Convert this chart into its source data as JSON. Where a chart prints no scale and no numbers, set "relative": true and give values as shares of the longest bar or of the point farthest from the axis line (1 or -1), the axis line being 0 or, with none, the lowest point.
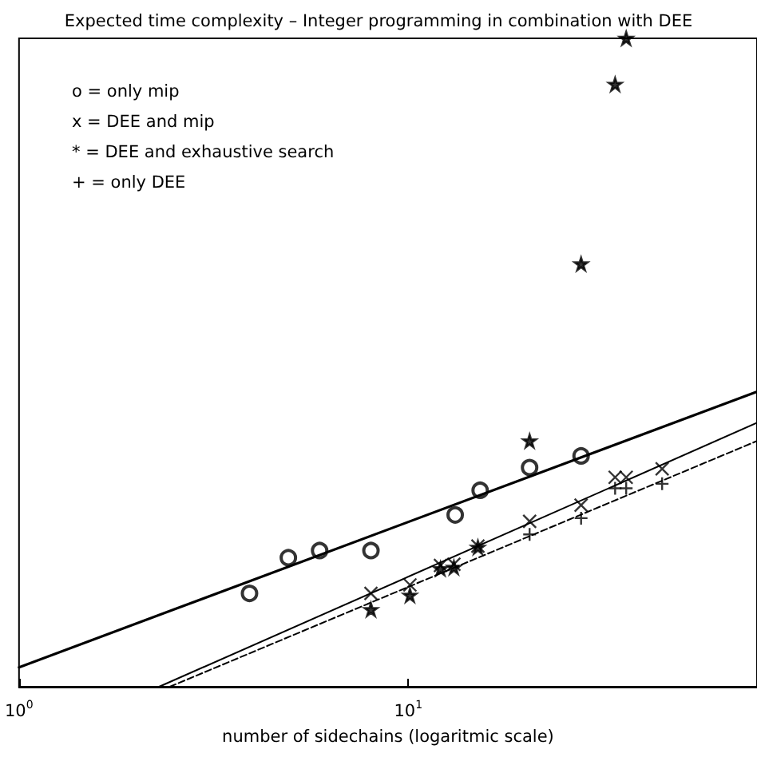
{
  "chart_data": {
    "type": "scatter",
    "title": "Expected time complexity – Integer programming in combination with DEE",
    "xlabel": "number of sidechains (logaritmic scale)",
    "relative": true,
    "log": "x",
    "xlim": [
      1,
      78.7
    ],
    "xticks": [
      {
        "value": 1,
        "label": "10$^{0}$"
      },
      {
        "value": 10,
        "label": "10$^{1}$"
      }
    ],
    "grid": false,
    "annotations": [
      "o = only mip",
      "x = DEE and mip",
      "* = DEE and exhaustive search",
      "+ = only DEE"
    ],
    "series": [
      {
        "color": "#000000",
        "marker": "circle",
        "x": [
          3.91,
          4.92,
          5.92,
          8.02,
          13.2,
          15.3,
          20.5,
          27.8
        ],
        "values": [
          0.144,
          0.199,
          0.21,
          0.21,
          0.265,
          0.303,
          0.338,
          0.356
        ]
      },
      {
        "color": "#000000",
        "marker": "cross",
        "x": [
          8.02,
          10.1,
          12.1,
          13.1,
          15.1,
          20.5,
          27.8,
          34.0,
          36.3,
          44.9
        ],
        "values": [
          0.144,
          0.157,
          0.187,
          0.189,
          0.217,
          0.255,
          0.28,
          0.323,
          0.323,
          0.336
        ]
      },
      {
        "color": "#000000",
        "marker": "star",
        "x": [
          8.02,
          10.1,
          12.1,
          13.1,
          15.1,
          20.5,
          27.8,
          34.0,
          36.3
        ],
        "values": [
          0.119,
          0.141,
          0.182,
          0.184,
          0.215,
          0.379,
          0.652,
          0.929,
          1
        ]
      },
      {
        "color": "#000000",
        "marker": "plus",
        "x": [
          20.5,
          27.8,
          34.0,
          36.3,
          44.9
        ],
        "values": [
          0.235,
          0.26,
          0.306,
          0.306,
          0.313
        ]
      },
      {
        "type": "line",
        "color": "#000000",
        "marker": "none",
        "line_style": "solid",
        "x": [
          1,
          78.7
        ],
        "values": [
          0.03,
          0.455
        ]
      },
      {
        "type": "line",
        "color": "#000000",
        "marker": "none",
        "line_style": "solid",
        "x": [
          2.29,
          78.7
        ],
        "values": [
          0,
          0.407
        ]
      },
      {
        "type": "line",
        "color": "#000000",
        "marker": "none",
        "line_style": "dashed",
        "x": [
          2.44,
          78.7
        ],
        "values": [
          0,
          0.379
        ]
      }
    ]
  }
}
